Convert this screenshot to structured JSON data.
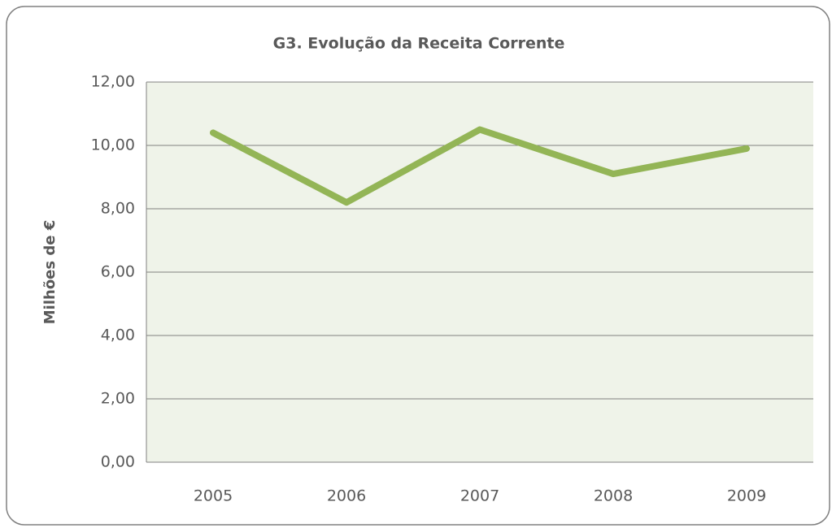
{
  "chart_data": {
    "type": "line",
    "title": "G3. Evolução da Receita Corrente",
    "y_label": "Milhões de €",
    "categories": [
      "2005",
      "2006",
      "2007",
      "2008",
      "2009"
    ],
    "values": [
      10.4,
      8.2,
      10.5,
      9.1,
      9.9
    ],
    "color": "#93b556",
    "ylim": [
      0,
      12
    ],
    "yticks": [
      {
        "value": 0,
        "label": "0,00"
      },
      {
        "value": 2,
        "label": "2,00"
      },
      {
        "value": 4,
        "label": "4,00"
      },
      {
        "value": 6,
        "label": "6,00"
      },
      {
        "value": 8,
        "label": "8,00"
      },
      {
        "value": 10,
        "label": "10,00"
      },
      {
        "value": 12,
        "label": "12,00"
      }
    ],
    "grid": true
  }
}
